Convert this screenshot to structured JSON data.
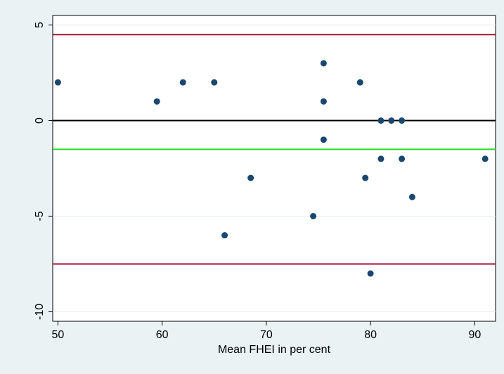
{
  "chart_data": {
    "type": "scatter",
    "title": "",
    "xlabel": "Mean FHEI in per cent",
    "ylabel": "",
    "xlim": [
      49.5,
      92
    ],
    "ylim": [
      -10.5,
      5.5
    ],
    "x_ticks": [
      50,
      60,
      70,
      80,
      90
    ],
    "y_ticks": [
      5,
      0,
      -5,
      -10
    ],
    "grid": "horizontal",
    "series": [
      {
        "points": [
          {
            "x": 50,
            "y": 2
          },
          {
            "x": 59.5,
            "y": 1
          },
          {
            "x": 62,
            "y": 2
          },
          {
            "x": 65,
            "y": 2
          },
          {
            "x": 66,
            "y": -6
          },
          {
            "x": 68.5,
            "y": -3
          },
          {
            "x": 74.5,
            "y": -5
          },
          {
            "x": 75.5,
            "y": 3
          },
          {
            "x": 75.5,
            "y": 1
          },
          {
            "x": 75.5,
            "y": -1
          },
          {
            "x": 79,
            "y": 2
          },
          {
            "x": 79.5,
            "y": -3
          },
          {
            "x": 80,
            "y": -8
          },
          {
            "x": 81,
            "y": 0
          },
          {
            "x": 81,
            "y": -2
          },
          {
            "x": 82,
            "y": 0
          },
          {
            "x": 83,
            "y": 0
          },
          {
            "x": 83,
            "y": -2
          },
          {
            "x": 84,
            "y": -4
          },
          {
            "x": 91,
            "y": -2
          }
        ]
      }
    ],
    "reference_lines": [
      {
        "y": 4.5,
        "color": "#a0102f"
      },
      {
        "y": 0,
        "color": "#000000"
      },
      {
        "y": -1.5,
        "color": "#22dd22"
      },
      {
        "y": -7.5,
        "color": "#a0102f"
      }
    ],
    "colors": {
      "outer_background": "#eaf2f3",
      "plot_background": "#ffffff",
      "grid": "#e4ecee",
      "marker": "#1a476f"
    }
  }
}
